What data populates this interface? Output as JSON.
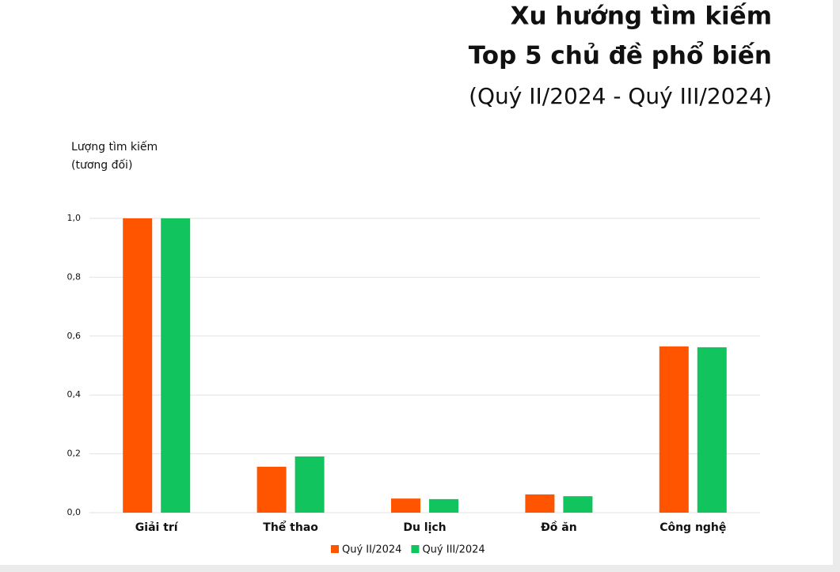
{
  "chart_data": {
    "type": "bar",
    "title": [
      "Xu hướng tìm kiếm",
      "Top 5 chủ đề phổ biến"
    ],
    "subtitle": "(Quý II/2024 - Quý III/2024)",
    "ylabel": [
      "Lượng tìm kiếm",
      "(tương đối)"
    ],
    "categories": [
      "Giải trí",
      "Thể thao",
      "Du lịch",
      "Đồ ăn",
      "Công nghệ"
    ],
    "series": [
      {
        "name": "Quý II/2024",
        "color": "#ff5500",
        "values": [
          1.0,
          0.156,
          0.048,
          0.062,
          0.565
        ]
      },
      {
        "name": "Quý III/2024",
        "color": "#12c45e",
        "values": [
          1.0,
          0.191,
          0.046,
          0.056,
          0.562
        ]
      }
    ],
    "ylim": [
      0,
      1
    ],
    "yticks": [
      {
        "value": 0,
        "label": "0,0"
      },
      {
        "value": 0.2,
        "label": "0,2"
      },
      {
        "value": 0.4,
        "label": "0,4"
      },
      {
        "value": 0.6,
        "label": "0,6"
      },
      {
        "value": 0.8,
        "label": "0,8"
      },
      {
        "value": 1,
        "label": "1,0"
      }
    ],
    "grid": true
  }
}
